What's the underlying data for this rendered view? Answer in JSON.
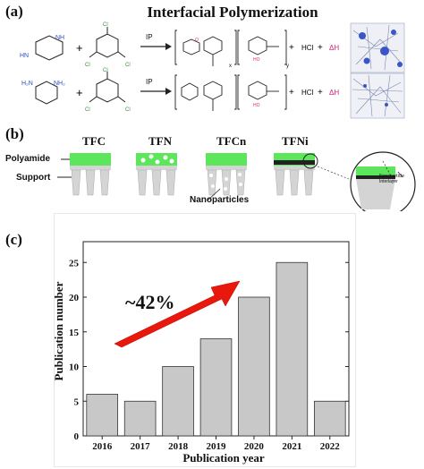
{
  "panel_a": {
    "label": "(a)",
    "title": "Interfacial Polymerization",
    "arrow_label": "IP",
    "byproduct_hcl": "HCl",
    "plus": "+",
    "delta_h": "ΔH",
    "subscript_x": "x",
    "subscript_y": "y",
    "colors": {
      "accent": "#d6247a",
      "cluster_blue": "#3a55c8"
    }
  },
  "panel_b": {
    "label": "(b)",
    "columns": [
      "TFC",
      "TFN",
      "TFCn",
      "TFNi"
    ],
    "layer_polyamide": "Polyamide",
    "layer_support": "Support",
    "nanoparticles_label": "Nanoparticles",
    "inset_label_line1": "Nanoparticle",
    "inset_label_line2": "Interlayer",
    "colors": {
      "polyamide": "#5ce65c",
      "support": "#d4d4d4"
    }
  },
  "panel_c": {
    "label": "(c)"
  },
  "chart_data": {
    "type": "bar",
    "categories": [
      "2016",
      "2017",
      "2018",
      "2019",
      "2020",
      "2021",
      "2022"
    ],
    "values": [
      6,
      5,
      10,
      14,
      20,
      25,
      5
    ],
    "xlabel": "Publication year",
    "ylabel": "Publication number",
    "ylim": [
      0,
      28
    ],
    "yticks": [
      0,
      5,
      10,
      15,
      20,
      25
    ],
    "annotation": "~42%",
    "bar_color": "#c8c8c8",
    "arrow_color": "#e8190c",
    "grid": false
  }
}
